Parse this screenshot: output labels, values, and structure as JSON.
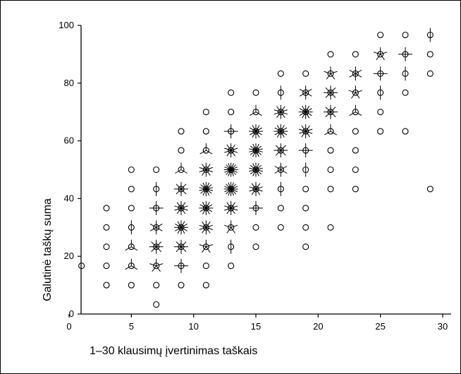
{
  "chart_data": {
    "type": "scatter",
    "style": "sunflower",
    "title": "",
    "xlabel": "1–30 klausimų įvertinimas taškais",
    "ylabel": "Galutinė taškų suma",
    "xlim": [
      0,
      30
    ],
    "ylim": [
      0,
      100
    ],
    "xticks": [
      0,
      5,
      10,
      15,
      20,
      25,
      30
    ],
    "yticks": [
      0,
      20,
      40,
      60,
      80,
      100
    ],
    "grid": false,
    "legend": "none",
    "points": [
      {
        "x": 1,
        "y": 16.7,
        "n": 1
      },
      {
        "x": 3,
        "y": 10,
        "n": 1
      },
      {
        "x": 3,
        "y": 16.7,
        "n": 1
      },
      {
        "x": 3,
        "y": 23.3,
        "n": 1
      },
      {
        "x": 3,
        "y": 30,
        "n": 1
      },
      {
        "x": 3,
        "y": 36.7,
        "n": 1
      },
      {
        "x": 5,
        "y": 10,
        "n": 1
      },
      {
        "x": 5,
        "y": 16.7,
        "n": 3
      },
      {
        "x": 5,
        "y": 23.3,
        "n": 3
      },
      {
        "x": 5,
        "y": 30,
        "n": 2
      },
      {
        "x": 5,
        "y": 36.7,
        "n": 1
      },
      {
        "x": 5,
        "y": 43.3,
        "n": 1
      },
      {
        "x": 5,
        "y": 50,
        "n": 1
      },
      {
        "x": 7,
        "y": 3.3,
        "n": 1
      },
      {
        "x": 7,
        "y": 10,
        "n": 1
      },
      {
        "x": 7,
        "y": 16.7,
        "n": 5
      },
      {
        "x": 7,
        "y": 23.3,
        "n": 8
      },
      {
        "x": 7,
        "y": 30,
        "n": 6
      },
      {
        "x": 7,
        "y": 36.7,
        "n": 4
      },
      {
        "x": 7,
        "y": 43.3,
        "n": 2
      },
      {
        "x": 7,
        "y": 50,
        "n": 1
      },
      {
        "x": 9,
        "y": 10,
        "n": 1
      },
      {
        "x": 9,
        "y": 16.7,
        "n": 4
      },
      {
        "x": 9,
        "y": 23.3,
        "n": 8
      },
      {
        "x": 9,
        "y": 30,
        "n": 12
      },
      {
        "x": 9,
        "y": 36.7,
        "n": 10
      },
      {
        "x": 9,
        "y": 43.3,
        "n": 8
      },
      {
        "x": 9,
        "y": 50,
        "n": 3
      },
      {
        "x": 9,
        "y": 56.7,
        "n": 1
      },
      {
        "x": 9,
        "y": 63.3,
        "n": 1
      },
      {
        "x": 11,
        "y": 10,
        "n": 1
      },
      {
        "x": 11,
        "y": 16.7,
        "n": 1
      },
      {
        "x": 11,
        "y": 23.3,
        "n": 5
      },
      {
        "x": 11,
        "y": 30,
        "n": 10
      },
      {
        "x": 11,
        "y": 36.7,
        "n": 12
      },
      {
        "x": 11,
        "y": 43.3,
        "n": 14
      },
      {
        "x": 11,
        "y": 50,
        "n": 10
      },
      {
        "x": 11,
        "y": 56.7,
        "n": 3
      },
      {
        "x": 11,
        "y": 63.3,
        "n": 1
      },
      {
        "x": 11,
        "y": 70,
        "n": 1
      },
      {
        "x": 13,
        "y": 16.7,
        "n": 1
      },
      {
        "x": 13,
        "y": 23.3,
        "n": 2
      },
      {
        "x": 13,
        "y": 30,
        "n": 5
      },
      {
        "x": 13,
        "y": 36.7,
        "n": 10
      },
      {
        "x": 13,
        "y": 43.3,
        "n": 16
      },
      {
        "x": 13,
        "y": 50,
        "n": 16
      },
      {
        "x": 13,
        "y": 56.7,
        "n": 10
      },
      {
        "x": 13,
        "y": 63.3,
        "n": 4
      },
      {
        "x": 13,
        "y": 70,
        "n": 1
      },
      {
        "x": 13,
        "y": 76.7,
        "n": 1
      },
      {
        "x": 15,
        "y": 23.3,
        "n": 1
      },
      {
        "x": 15,
        "y": 30,
        "n": 1
      },
      {
        "x": 15,
        "y": 36.7,
        "n": 4
      },
      {
        "x": 15,
        "y": 43.3,
        "n": 10
      },
      {
        "x": 15,
        "y": 50,
        "n": 14
      },
      {
        "x": 15,
        "y": 56.7,
        "n": 14
      },
      {
        "x": 15,
        "y": 63.3,
        "n": 12
      },
      {
        "x": 15,
        "y": 70,
        "n": 3
      },
      {
        "x": 15,
        "y": 76.7,
        "n": 1
      },
      {
        "x": 17,
        "y": 30,
        "n": 1
      },
      {
        "x": 17,
        "y": 36.7,
        "n": 1
      },
      {
        "x": 17,
        "y": 43.3,
        "n": 2
      },
      {
        "x": 17,
        "y": 50,
        "n": 6
      },
      {
        "x": 17,
        "y": 56.7,
        "n": 8
      },
      {
        "x": 17,
        "y": 63.3,
        "n": 12
      },
      {
        "x": 17,
        "y": 70,
        "n": 10
      },
      {
        "x": 17,
        "y": 76.7,
        "n": 2
      },
      {
        "x": 17,
        "y": 83.3,
        "n": 1
      },
      {
        "x": 19,
        "y": 23.3,
        "n": 1
      },
      {
        "x": 19,
        "y": 30,
        "n": 1
      },
      {
        "x": 19,
        "y": 36.7,
        "n": 1
      },
      {
        "x": 19,
        "y": 43.3,
        "n": 1
      },
      {
        "x": 19,
        "y": 50,
        "n": 2
      },
      {
        "x": 19,
        "y": 56.7,
        "n": 4
      },
      {
        "x": 19,
        "y": 63.3,
        "n": 10
      },
      {
        "x": 19,
        "y": 70,
        "n": 12
      },
      {
        "x": 19,
        "y": 76.7,
        "n": 6
      },
      {
        "x": 19,
        "y": 83.3,
        "n": 1
      },
      {
        "x": 21,
        "y": 30,
        "n": 1
      },
      {
        "x": 21,
        "y": 43.3,
        "n": 1
      },
      {
        "x": 21,
        "y": 50,
        "n": 1
      },
      {
        "x": 21,
        "y": 56.7,
        "n": 1
      },
      {
        "x": 21,
        "y": 63.3,
        "n": 3
      },
      {
        "x": 21,
        "y": 70,
        "n": 8
      },
      {
        "x": 21,
        "y": 76.7,
        "n": 8
      },
      {
        "x": 21,
        "y": 83.3,
        "n": 5
      },
      {
        "x": 21,
        "y": 90,
        "n": 1
      },
      {
        "x": 23,
        "y": 43.3,
        "n": 1
      },
      {
        "x": 23,
        "y": 50,
        "n": 1
      },
      {
        "x": 23,
        "y": 56.7,
        "n": 1
      },
      {
        "x": 23,
        "y": 63.3,
        "n": 1
      },
      {
        "x": 23,
        "y": 70,
        "n": 3
      },
      {
        "x": 23,
        "y": 76.7,
        "n": 5
      },
      {
        "x": 23,
        "y": 83.3,
        "n": 6
      },
      {
        "x": 23,
        "y": 90,
        "n": 1
      },
      {
        "x": 25,
        "y": 63.3,
        "n": 1
      },
      {
        "x": 25,
        "y": 70,
        "n": 1
      },
      {
        "x": 25,
        "y": 76.7,
        "n": 2
      },
      {
        "x": 25,
        "y": 83.3,
        "n": 4
      },
      {
        "x": 25,
        "y": 90,
        "n": 5
      },
      {
        "x": 25,
        "y": 96.7,
        "n": 1
      },
      {
        "x": 27,
        "y": 63.3,
        "n": 1
      },
      {
        "x": 27,
        "y": 76.7,
        "n": 1
      },
      {
        "x": 27,
        "y": 83.3,
        "n": 2
      },
      {
        "x": 27,
        "y": 90,
        "n": 4
      },
      {
        "x": 27,
        "y": 96.7,
        "n": 1
      },
      {
        "x": 29,
        "y": 43.3,
        "n": 1
      },
      {
        "x": 29,
        "y": 83.3,
        "n": 1
      },
      {
        "x": 29,
        "y": 90,
        "n": 1
      },
      {
        "x": 29,
        "y": 96.7,
        "n": 2
      }
    ]
  }
}
